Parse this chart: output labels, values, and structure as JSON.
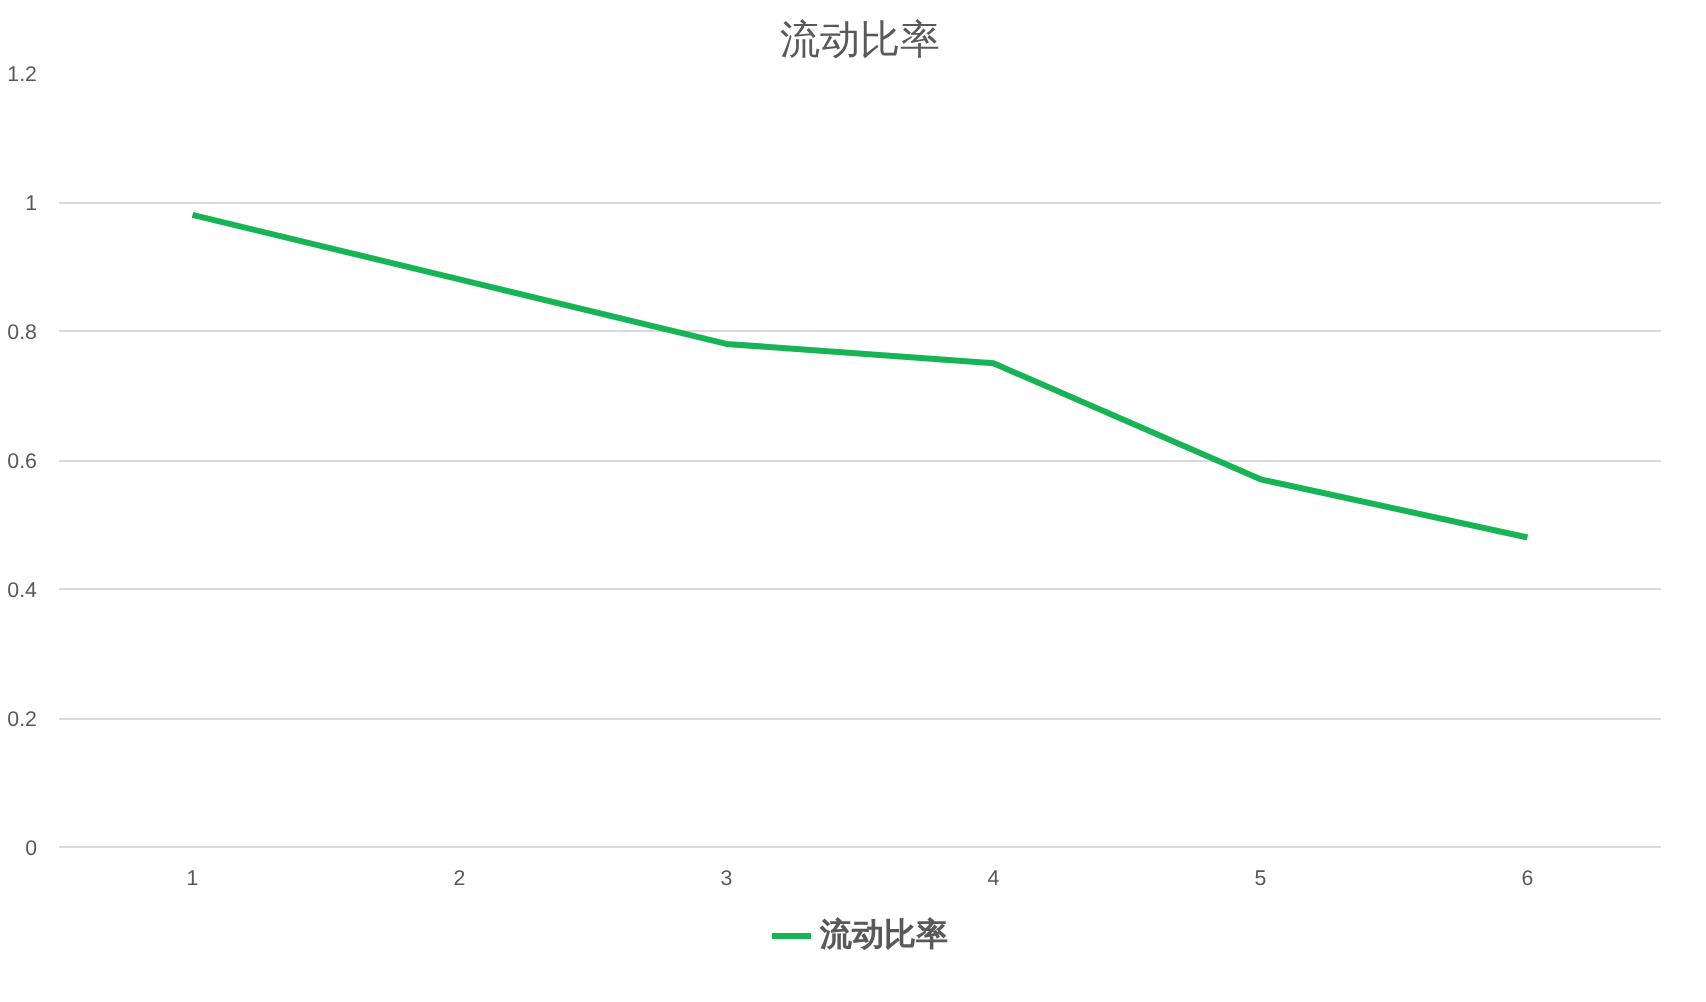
{
  "chart_data": {
    "type": "line",
    "title": "流动比率",
    "categories": [
      "1",
      "2",
      "3",
      "4",
      "5",
      "6"
    ],
    "series": [
      {
        "name": "流动比率",
        "color": "#17b456",
        "values": [
          0.98,
          0.88,
          0.78,
          0.75,
          0.57,
          0.48
        ]
      }
    ],
    "ylim": [
      0,
      1.2
    ],
    "yticks": [
      0,
      0.2,
      0.4,
      0.6,
      0.8,
      1,
      1.2
    ],
    "grid": "y",
    "legend": "bottom",
    "marker": "none",
    "line_style": "solid"
  }
}
